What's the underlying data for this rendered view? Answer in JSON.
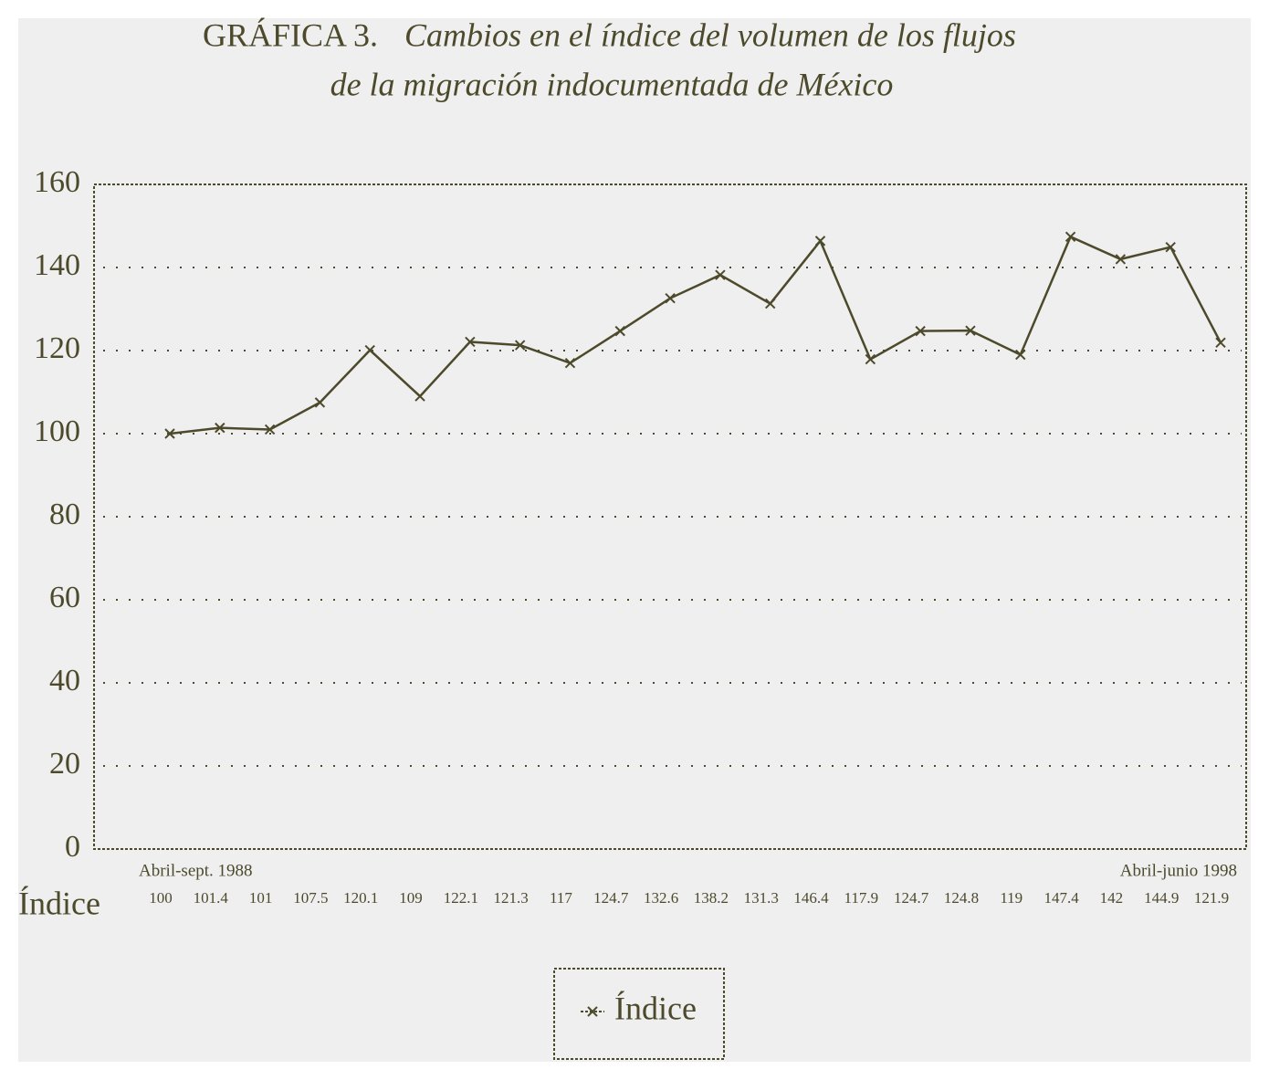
{
  "chart_data": {
    "type": "line",
    "title_label": "GRÁFICA 3.",
    "title": [
      "Cambios en el índice del volumen de los flujos",
      "de la migración indocumentada de México"
    ],
    "categories": [
      "Abril-sept. 1988",
      null,
      null,
      null,
      null,
      null,
      null,
      null,
      null,
      null,
      null,
      null,
      null,
      null,
      null,
      null,
      null,
      null,
      null,
      null,
      null,
      "Abril-junio 1998"
    ],
    "series": [
      {
        "name": "Índice",
        "color": "#4d4a2c",
        "values": [
          100,
          101.4,
          101,
          107.5,
          120.1,
          109,
          122.1,
          121.3,
          117,
          124.7,
          132.6,
          138.2,
          131.3,
          146.4,
          117.9,
          124.7,
          124.8,
          119,
          147.4,
          142,
          144.9,
          121.9
        ]
      }
    ],
    "ylim": [
      0,
      160
    ],
    "yticks": [
      0,
      20,
      40,
      60,
      80,
      100,
      120,
      140,
      160
    ],
    "grid": true,
    "legend": "bottom"
  }
}
